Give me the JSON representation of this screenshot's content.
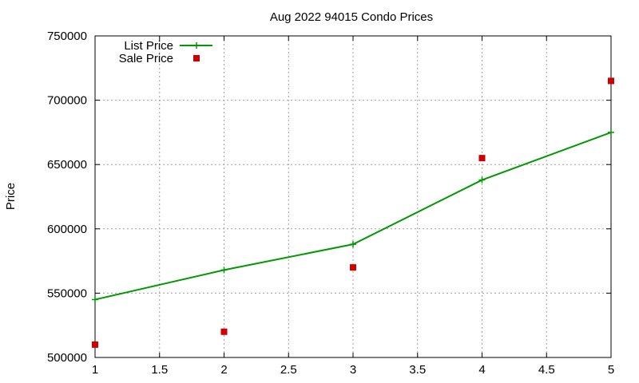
{
  "chart_data": {
    "type": "line",
    "title": "Aug 2022 94015 Condo Prices",
    "xlabel": "",
    "ylabel": "Price",
    "xlim": [
      1,
      5
    ],
    "ylim": [
      500000,
      750000
    ],
    "x_ticks": [
      "1",
      "1.5",
      "2",
      "2.5",
      "3",
      "3.5",
      "4",
      "4.5",
      "5"
    ],
    "y_ticks": [
      "500000",
      "550000",
      "600000",
      "650000",
      "700000",
      "750000"
    ],
    "grid": true,
    "legend_position": "top-left",
    "series": [
      {
        "name": "List Price",
        "style": "line+points",
        "color": "#009900",
        "x": [
          1,
          2,
          3,
          4,
          5
        ],
        "y": [
          545000,
          568000,
          588000,
          638000,
          675000
        ]
      },
      {
        "name": "Sale Price",
        "style": "points",
        "color": "#cc0000",
        "x": [
          1,
          2,
          3,
          4,
          5
        ],
        "y": [
          510000,
          520000,
          570000,
          655000,
          715000
        ]
      }
    ]
  }
}
